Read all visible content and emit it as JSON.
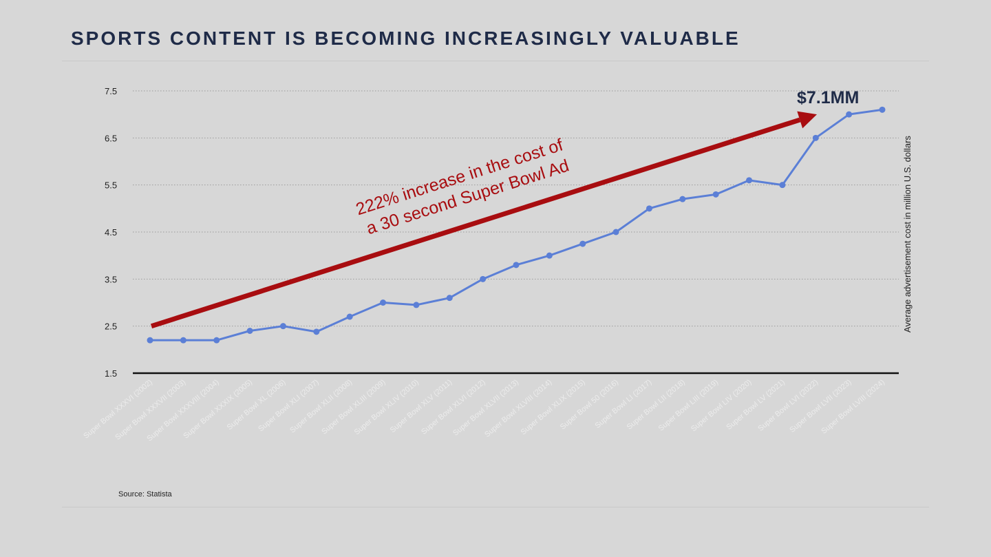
{
  "slide": {
    "title": "SPORTS CONTENT IS BECOMING INCREASINGLY VALUABLE",
    "source": "Source: Statista"
  },
  "annotations": {
    "arrow_text_line1": "222% increase in the cost of",
    "arrow_text_line2": "a 30 second Super Bowl Ad",
    "end_value_label": "$7.1MM"
  },
  "colors": {
    "line": "#5b7fd6",
    "arrow": "#a80d10",
    "title": "#1f2b48",
    "axis": "#111111",
    "grid": "#9a9a9a",
    "tick_label": "#222222",
    "category_label": "#ececec"
  },
  "chart_data": {
    "type": "line",
    "title": "",
    "xlabel": "",
    "ylabel": "Average advertisement cost in million U.S. dollars",
    "ylim": [
      1.5,
      7.5
    ],
    "yticks": [
      1.5,
      2.5,
      3.5,
      4.5,
      5.5,
      6.5,
      7.5
    ],
    "grid": true,
    "categories": [
      "Super Bowl XXXVI (2002)",
      "Super Bowl XXXVII (2003)",
      "Super Bowl XXXVIII (2004)",
      "Super Bowl XXXIX (2005)",
      "Super Bowl XL (2006)",
      "Super Bowl XLI (2007)",
      "Super Bowl XLII (2008)",
      "Super Bowl XLIII (2009)",
      "Super Bowl XLIV (2010)",
      "Super Bowl XLV (2011)",
      "Super Bowl XLVI (2012)",
      "Super Bowl XLVII (2013)",
      "Super Bowl XLVIII (2014)",
      "Super Bowl XLIX (2015)",
      "Super Bowl 50 (2016)",
      "Super Bowl LI (2017)",
      "Super Bowl LII (2018)",
      "Super Bowl LIII (2019)",
      "Super Bowl LIV (2020)",
      "Super Bowl LV (2021)",
      "Super Bowl LVI (2022)",
      "Super Bowl LVII (2023)",
      "Super Bowl LVIII (2024)"
    ],
    "series": [
      {
        "values": [
          2.2,
          2.2,
          2.2,
          2.4,
          2.5,
          2.38,
          2.7,
          3.0,
          2.95,
          3.1,
          3.5,
          3.8,
          4.0,
          4.25,
          4.5,
          5.0,
          5.2,
          5.3,
          5.6,
          5.5,
          6.5,
          7.0,
          7.1
        ]
      }
    ],
    "trend_arrow": {
      "from_value": 2.5,
      "to_value": 7.0
    }
  }
}
